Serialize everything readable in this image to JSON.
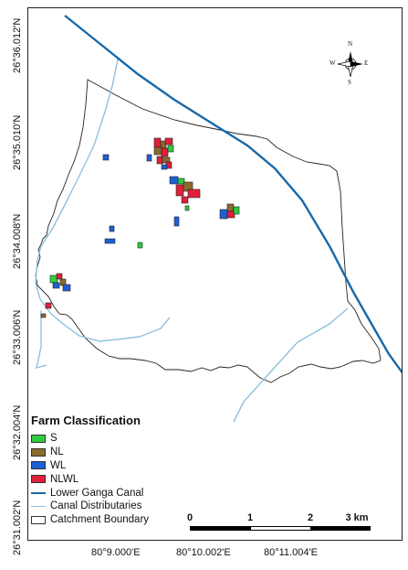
{
  "latitude_labels": [
    "26°36.012'N",
    "26°35.010'N",
    "26°34.008'N",
    "26°33.006'N",
    "26°32.004'N",
    "26°31.002'N"
  ],
  "longitude_labels": [
    "80°9.000'E",
    "80°10.002'E",
    "80°11.004'E"
  ],
  "north_arrow": {
    "icon": "compass-rose-icon",
    "n": "N",
    "s": "S",
    "e": "E",
    "w": "W"
  },
  "legend": {
    "title": "Farm Classification",
    "classes": [
      {
        "label": "S",
        "color": "#2ecc40"
      },
      {
        "label": "NL",
        "color": "#8b6a2e"
      },
      {
        "label": "WL",
        "color": "#1f5fd6"
      },
      {
        "label": "NLWL",
        "color": "#e0203a"
      }
    ],
    "lines": [
      {
        "label": "Lower Ganga Canal",
        "color": "#1769aa"
      },
      {
        "label": "Canal Distributaries",
        "color": "#8fc1df"
      }
    ],
    "boundary": {
      "label": "Catchment Boundary"
    }
  },
  "scale_bar": {
    "ticks": [
      "0",
      "1",
      "2",
      "3 km"
    ]
  }
}
